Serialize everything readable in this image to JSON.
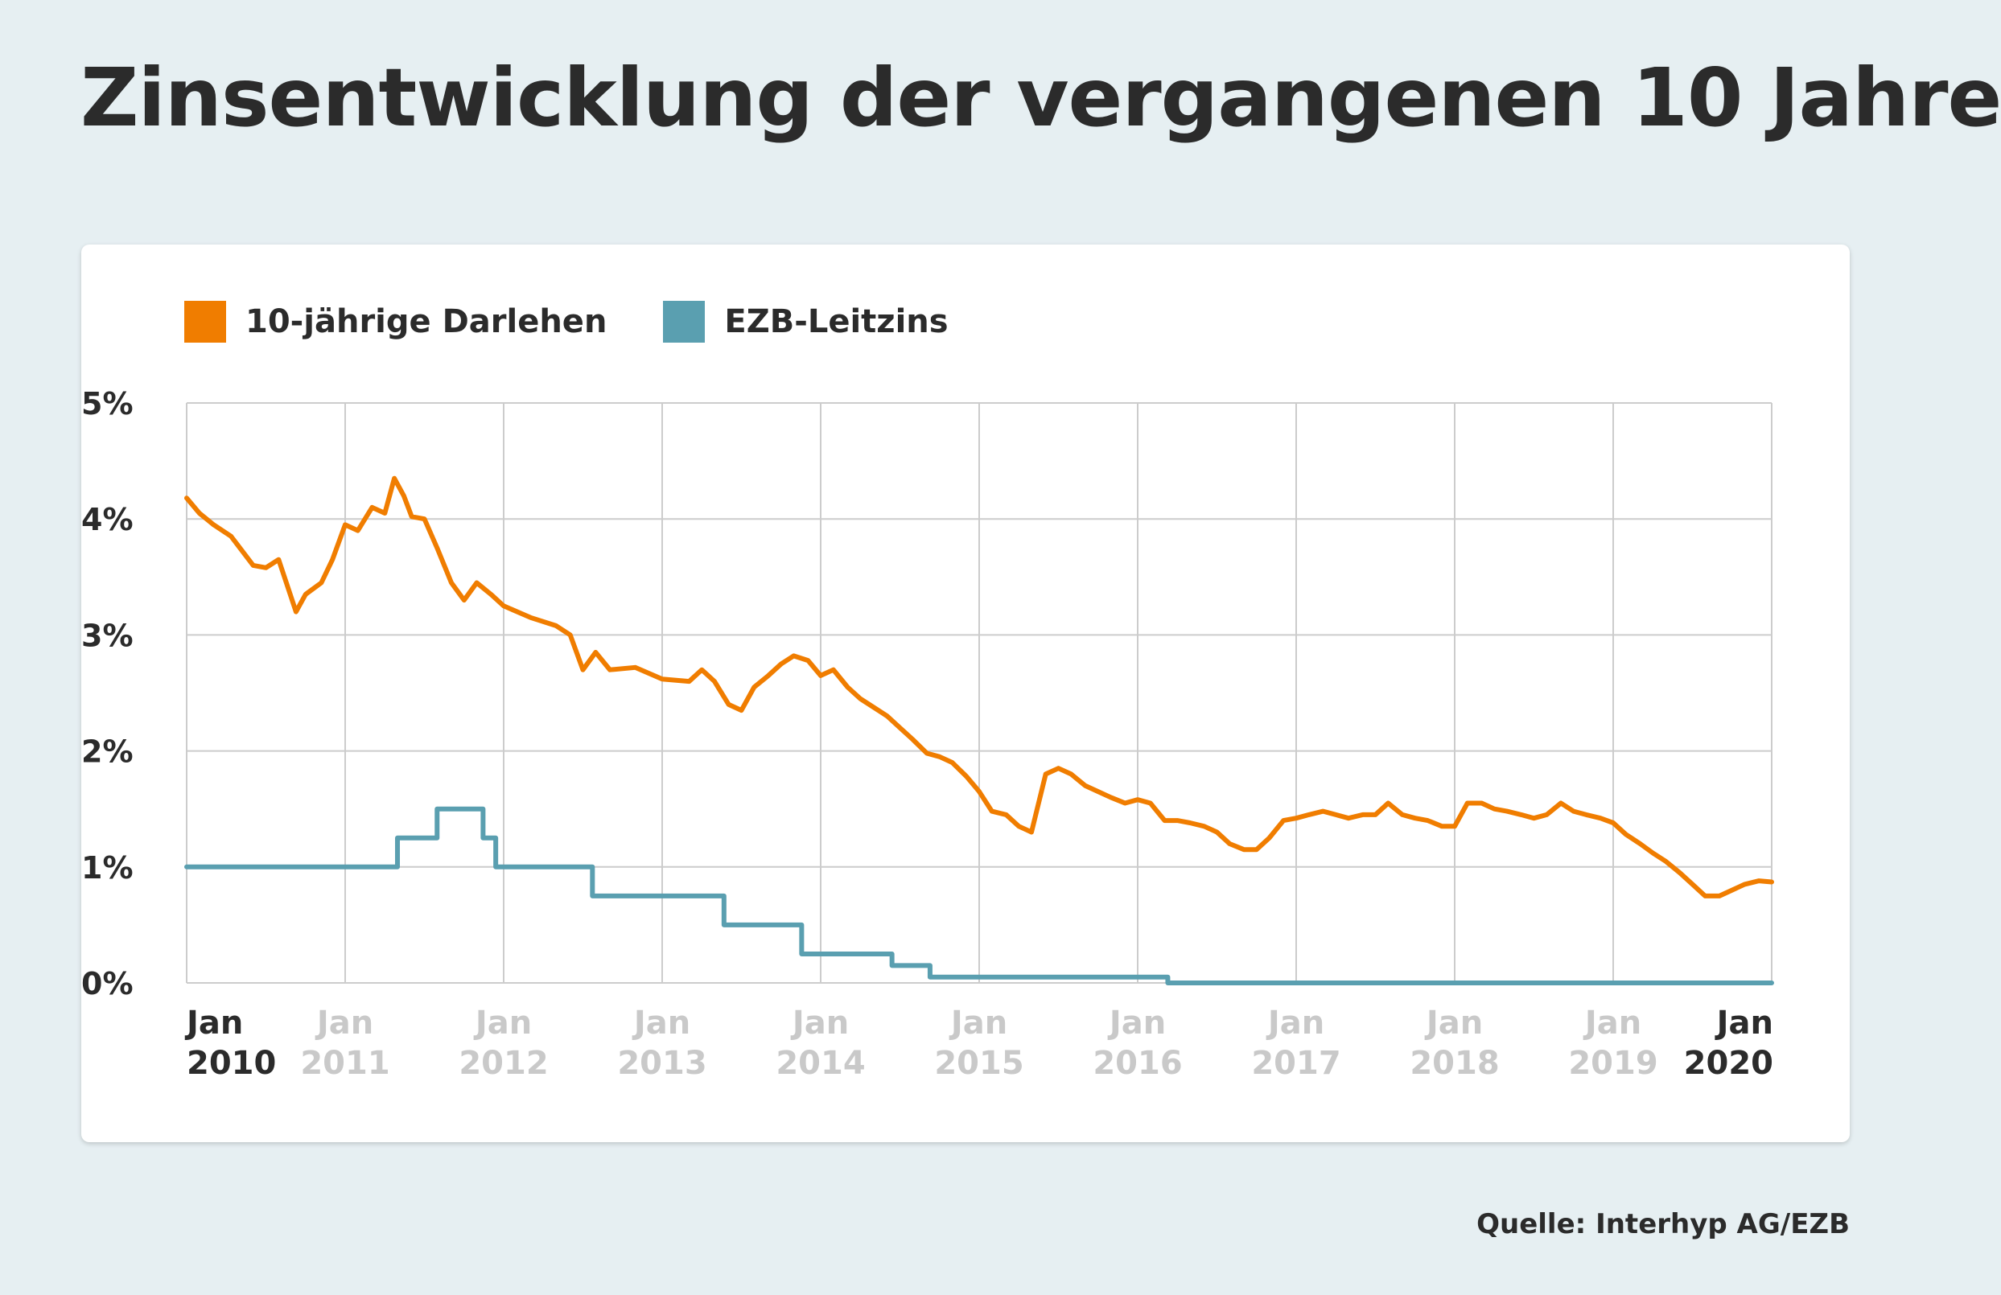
{
  "title": "Zinsentwicklung der vergangenen 10 Jahre",
  "source": "Quelle: Interhyp AG/EZB",
  "colors": {
    "background": "#e6eff2",
    "loan": "#f07d00",
    "ecb": "#5a9fb0",
    "grid": "#cccccc",
    "tick_active": "#2b2b2b",
    "tick_muted": "#c9c9c9"
  },
  "chart_data": {
    "type": "line",
    "title": "Zinsentwicklung der vergangenen 10 Jahre",
    "xlabel": "",
    "ylabel": "",
    "ylim": [
      0,
      5
    ],
    "xlim": [
      2010.0,
      2020.0
    ],
    "yticks": [
      {
        "value": 0,
        "label": "0%"
      },
      {
        "value": 1,
        "label": "1%"
      },
      {
        "value": 2,
        "label": "2%"
      },
      {
        "value": 3,
        "label": "3%"
      },
      {
        "value": 4,
        "label": "4%"
      },
      {
        "value": 5,
        "label": "5%"
      }
    ],
    "xticks": [
      {
        "value": 2010,
        "label1": "Jan",
        "label2": "2010",
        "emphasis": true
      },
      {
        "value": 2011,
        "label1": "Jan",
        "label2": "2011",
        "emphasis": false
      },
      {
        "value": 2012,
        "label1": "Jan",
        "label2": "2012",
        "emphasis": false
      },
      {
        "value": 2013,
        "label1": "Jan",
        "label2": "2013",
        "emphasis": false
      },
      {
        "value": 2014,
        "label1": "Jan",
        "label2": "2014",
        "emphasis": false
      },
      {
        "value": 2015,
        "label1": "Jan",
        "label2": "2015",
        "emphasis": false
      },
      {
        "value": 2016,
        "label1": "Jan",
        "label2": "2016",
        "emphasis": false
      },
      {
        "value": 2017,
        "label1": "Jan",
        "label2": "2017",
        "emphasis": false
      },
      {
        "value": 2018,
        "label1": "Jan",
        "label2": "2018",
        "emphasis": false
      },
      {
        "value": 2019,
        "label1": "Jan",
        "label2": "2019",
        "emphasis": false
      },
      {
        "value": 2020,
        "label1": "Jan",
        "label2": "2020",
        "emphasis": true
      }
    ],
    "grid": true,
    "legend": "top-left",
    "series": [
      {
        "name": "10-jährige Darlehen",
        "color": "#f07d00",
        "style": "line",
        "points": [
          [
            2010.0,
            4.18
          ],
          [
            2010.08,
            4.05
          ],
          [
            2010.17,
            3.95
          ],
          [
            2010.28,
            3.85
          ],
          [
            2010.42,
            3.6
          ],
          [
            2010.5,
            3.58
          ],
          [
            2010.58,
            3.65
          ],
          [
            2010.69,
            3.2
          ],
          [
            2010.75,
            3.35
          ],
          [
            2010.85,
            3.45
          ],
          [
            2010.92,
            3.65
          ],
          [
            2011.0,
            3.95
          ],
          [
            2011.08,
            3.9
          ],
          [
            2011.17,
            4.1
          ],
          [
            2011.25,
            4.05
          ],
          [
            2011.31,
            4.35
          ],
          [
            2011.37,
            4.2
          ],
          [
            2011.42,
            4.02
          ],
          [
            2011.5,
            4.0
          ],
          [
            2011.58,
            3.75
          ],
          [
            2011.67,
            3.45
          ],
          [
            2011.75,
            3.3
          ],
          [
            2011.83,
            3.45
          ],
          [
            2011.92,
            3.35
          ],
          [
            2012.0,
            3.25
          ],
          [
            2012.17,
            3.15
          ],
          [
            2012.33,
            3.08
          ],
          [
            2012.42,
            3.0
          ],
          [
            2012.5,
            2.7
          ],
          [
            2012.58,
            2.85
          ],
          [
            2012.67,
            2.7
          ],
          [
            2012.83,
            2.72
          ],
          [
            2013.0,
            2.62
          ],
          [
            2013.17,
            2.6
          ],
          [
            2013.25,
            2.7
          ],
          [
            2013.33,
            2.6
          ],
          [
            2013.42,
            2.4
          ],
          [
            2013.5,
            2.35
          ],
          [
            2013.58,
            2.55
          ],
          [
            2013.67,
            2.65
          ],
          [
            2013.75,
            2.75
          ],
          [
            2013.83,
            2.82
          ],
          [
            2013.92,
            2.78
          ],
          [
            2014.0,
            2.65
          ],
          [
            2014.08,
            2.7
          ],
          [
            2014.17,
            2.55
          ],
          [
            2014.25,
            2.45
          ],
          [
            2014.33,
            2.38
          ],
          [
            2014.42,
            2.3
          ],
          [
            2014.5,
            2.2
          ],
          [
            2014.58,
            2.1
          ],
          [
            2014.67,
            1.98
          ],
          [
            2014.75,
            1.95
          ],
          [
            2014.83,
            1.9
          ],
          [
            2014.92,
            1.78
          ],
          [
            2015.0,
            1.65
          ],
          [
            2015.08,
            1.48
          ],
          [
            2015.17,
            1.45
          ],
          [
            2015.25,
            1.35
          ],
          [
            2015.33,
            1.3
          ],
          [
            2015.42,
            1.8
          ],
          [
            2015.5,
            1.85
          ],
          [
            2015.58,
            1.8
          ],
          [
            2015.67,
            1.7
          ],
          [
            2015.75,
            1.65
          ],
          [
            2015.83,
            1.6
          ],
          [
            2015.92,
            1.55
          ],
          [
            2016.0,
            1.58
          ],
          [
            2016.08,
            1.55
          ],
          [
            2016.17,
            1.4
          ],
          [
            2016.25,
            1.4
          ],
          [
            2016.33,
            1.38
          ],
          [
            2016.42,
            1.35
          ],
          [
            2016.5,
            1.3
          ],
          [
            2016.58,
            1.2
          ],
          [
            2016.67,
            1.15
          ],
          [
            2016.75,
            1.15
          ],
          [
            2016.83,
            1.25
          ],
          [
            2016.92,
            1.4
          ],
          [
            2017.0,
            1.42
          ],
          [
            2017.08,
            1.45
          ],
          [
            2017.17,
            1.48
          ],
          [
            2017.25,
            1.45
          ],
          [
            2017.33,
            1.42
          ],
          [
            2017.42,
            1.45
          ],
          [
            2017.5,
            1.45
          ],
          [
            2017.58,
            1.55
          ],
          [
            2017.67,
            1.45
          ],
          [
            2017.75,
            1.42
          ],
          [
            2017.83,
            1.4
          ],
          [
            2017.92,
            1.35
          ],
          [
            2018.0,
            1.35
          ],
          [
            2018.08,
            1.55
          ],
          [
            2018.17,
            1.55
          ],
          [
            2018.25,
            1.5
          ],
          [
            2018.33,
            1.48
          ],
          [
            2018.42,
            1.45
          ],
          [
            2018.5,
            1.42
          ],
          [
            2018.58,
            1.45
          ],
          [
            2018.67,
            1.55
          ],
          [
            2018.75,
            1.48
          ],
          [
            2018.83,
            1.45
          ],
          [
            2018.92,
            1.42
          ],
          [
            2019.0,
            1.38
          ],
          [
            2019.08,
            1.28
          ],
          [
            2019.17,
            1.2
          ],
          [
            2019.25,
            1.12
          ],
          [
            2019.33,
            1.05
          ],
          [
            2019.42,
            0.95
          ],
          [
            2019.5,
            0.85
          ],
          [
            2019.58,
            0.75
          ],
          [
            2019.67,
            0.75
          ],
          [
            2019.75,
            0.8
          ],
          [
            2019.83,
            0.85
          ],
          [
            2019.92,
            0.88
          ],
          [
            2020.0,
            0.87
          ]
        ]
      },
      {
        "name": "EZB-Leitzins",
        "color": "#5a9fb0",
        "style": "step",
        "points": [
          [
            2010.0,
            1.0
          ],
          [
            2011.33,
            1.25
          ],
          [
            2011.58,
            1.5
          ],
          [
            2011.87,
            1.25
          ],
          [
            2011.95,
            1.0
          ],
          [
            2012.56,
            0.75
          ],
          [
            2013.39,
            0.5
          ],
          [
            2013.88,
            0.25
          ],
          [
            2014.45,
            0.15
          ],
          [
            2014.69,
            0.05
          ],
          [
            2016.19,
            0.0
          ],
          [
            2020.0,
            0.0
          ]
        ]
      }
    ]
  }
}
